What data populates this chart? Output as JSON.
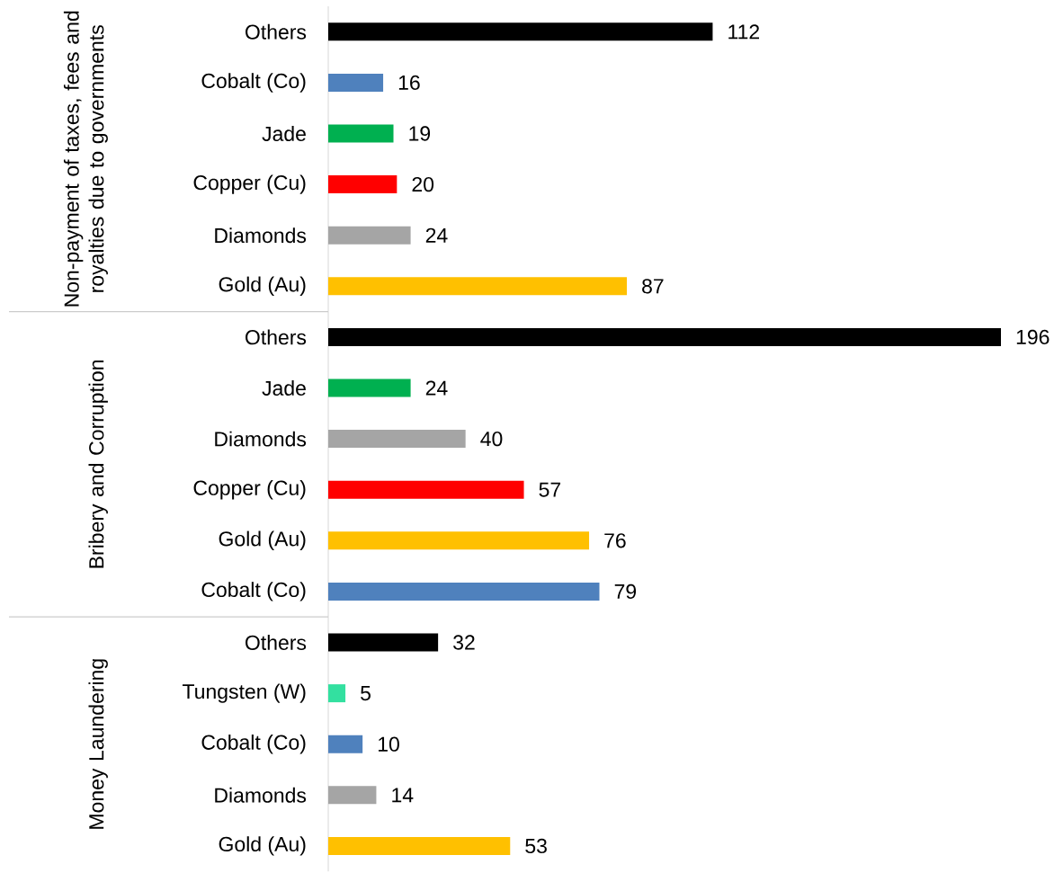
{
  "chart_data": [
    {
      "type": "bar",
      "orientation": "horizontal",
      "ylabel": "Non-payment of taxes, fees and royalties due to governments",
      "categories": [
        "Others",
        "Cobalt (Co)",
        "Jade",
        "Copper (Cu)",
        "Diamonds",
        "Gold (Au)"
      ],
      "values": [
        112,
        16,
        19,
        20,
        24,
        87
      ],
      "colors": [
        "#000000",
        "#4f81bd",
        "#00b050",
        "#ff0000",
        "#a5a5a5",
        "#ffc000"
      ],
      "data_labels": true,
      "tick_labels": "y"
    },
    {
      "type": "bar",
      "orientation": "horizontal",
      "ylabel": "Bribery and Corruption",
      "categories": [
        "Others",
        "Jade",
        "Diamonds",
        "Copper (Cu)",
        "Gold (Au)",
        "Cobalt (Co)"
      ],
      "values": [
        196,
        24,
        40,
        57,
        76,
        79
      ],
      "colors": [
        "#000000",
        "#00b050",
        "#a5a5a5",
        "#ff0000",
        "#ffc000",
        "#4f81bd"
      ],
      "data_labels": true,
      "tick_labels": "y"
    },
    {
      "type": "bar",
      "orientation": "horizontal",
      "ylabel": "Money Laundering",
      "categories": [
        "Others",
        "Tungsten (W)",
        "Cobalt (Co)",
        "Diamonds",
        "Gold (Au)"
      ],
      "values": [
        32,
        5,
        10,
        14,
        53
      ],
      "colors": [
        "#000000",
        "#33e0a0",
        "#4f81bd",
        "#a5a5a5",
        "#ffc000"
      ],
      "data_labels": true,
      "tick_labels": "y"
    }
  ]
}
